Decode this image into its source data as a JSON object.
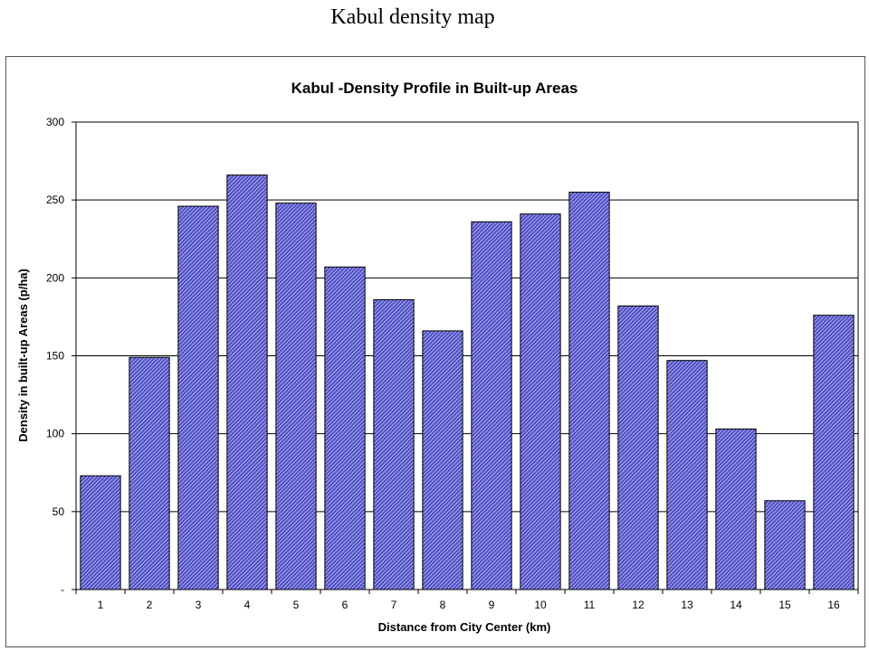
{
  "slide_title": "Kabul density map",
  "colors": {
    "bar_fill": "#5050c8",
    "bar_hatch": "#ffffff",
    "bar_stroke": "#000000",
    "gridline": "#000000"
  },
  "chart_data": {
    "type": "bar",
    "title": "Kabul -Density Profile in Built-up Areas",
    "xlabel": "Distance from City Center (km)",
    "ylabel": "Density in built-up Areas (p/ha)",
    "categories": [
      "1",
      "2",
      "3",
      "4",
      "5",
      "6",
      "7",
      "8",
      "9",
      "10",
      "11",
      "12",
      "13",
      "14",
      "15",
      "16"
    ],
    "values": [
      73,
      149,
      246,
      266,
      248,
      207,
      186,
      166,
      236,
      241,
      255,
      182,
      147,
      103,
      57,
      176
    ],
    "ylim": [
      0,
      300
    ],
    "yticks": [
      0,
      50,
      100,
      150,
      200,
      250,
      300
    ],
    "ytick_labels": [
      "-",
      "50",
      "100",
      "150",
      "200",
      "250",
      "300"
    ],
    "grid": "horizontal",
    "legend": "none"
  }
}
